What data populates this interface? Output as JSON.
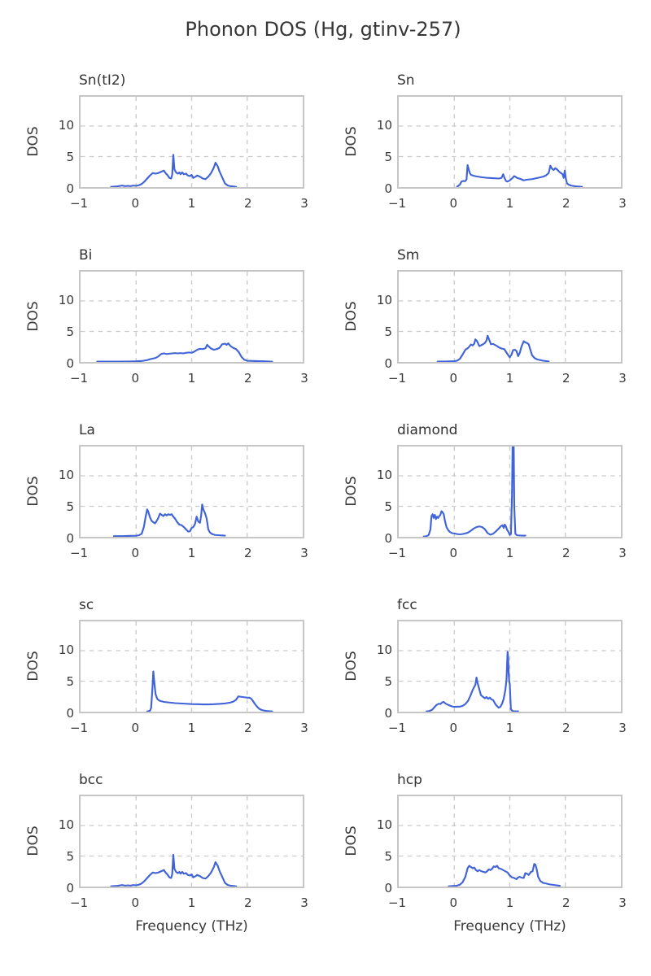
{
  "title": "Phonon DOS (Hg, gtinv-257)",
  "colors": {
    "line": "#4064d8",
    "grid": "#cbcbcb",
    "spine": "#c6c6c6",
    "text": "#3a3a3a"
  },
  "axes": {
    "xlabel": "Frequency (THz)",
    "ylabel": "DOS",
    "xlim": [
      -1,
      3
    ],
    "ylim": [
      0,
      14.8
    ],
    "xticks": [
      -1,
      0,
      1,
      2,
      3
    ],
    "xtick_labels": [
      "−1",
      "0",
      "1",
      "2",
      "3"
    ],
    "yticks": [
      0,
      5,
      10
    ],
    "ytick_labels": [
      "0",
      "5",
      "10"
    ],
    "grid_x": [
      0,
      1,
      2
    ],
    "grid_y": [
      5,
      10
    ],
    "grid_on": true,
    "legend": "none"
  },
  "chart_data": [
    {
      "type": "line",
      "title": "Sn(tI2)",
      "x": [
        -0.45,
        -0.35,
        -0.25,
        -0.2,
        -0.15,
        -0.1,
        -0.05,
        0,
        0.05,
        0.1,
        0.15,
        0.2,
        0.25,
        0.3,
        0.35,
        0.4,
        0.45,
        0.5,
        0.53,
        0.57,
        0.6,
        0.63,
        0.65,
        0.67,
        0.69,
        0.72,
        0.75,
        0.78,
        0.8,
        0.83,
        0.86,
        0.9,
        0.93,
        0.97,
        1.0,
        1.03,
        1.07,
        1.1,
        1.15,
        1.2,
        1.25,
        1.3,
        1.35,
        1.4,
        1.43,
        1.47,
        1.5,
        1.55,
        1.6,
        1.65,
        1.7,
        1.8
      ],
      "y": [
        0.05,
        0.1,
        0.25,
        0.15,
        0.2,
        0.15,
        0.25,
        0.2,
        0.3,
        0.5,
        0.9,
        1.4,
        1.9,
        2.3,
        2.2,
        2.3,
        2.5,
        2.7,
        2.3,
        1.9,
        1.5,
        1.4,
        2.0,
        5.3,
        2.9,
        2.4,
        2.2,
        2.4,
        2.1,
        2.4,
        2.1,
        2.2,
        1.9,
        1.8,
        2.0,
        1.5,
        1.7,
        1.9,
        1.7,
        1.4,
        1.3,
        1.7,
        2.3,
        3.2,
        4.0,
        3.4,
        2.6,
        1.6,
        0.6,
        0.25,
        0.15,
        0.05
      ]
    },
    {
      "type": "line",
      "title": "Sn",
      "x": [
        0.05,
        0.1,
        0.13,
        0.16,
        0.19,
        0.22,
        0.24,
        0.26,
        0.28,
        0.3,
        0.35,
        0.4,
        0.5,
        0.6,
        0.7,
        0.8,
        0.85,
        0.88,
        0.9,
        0.93,
        0.96,
        1.0,
        1.05,
        1.08,
        1.1,
        1.13,
        1.17,
        1.2,
        1.25,
        1.3,
        1.35,
        1.4,
        1.45,
        1.5,
        1.55,
        1.6,
        1.65,
        1.7,
        1.73,
        1.76,
        1.79,
        1.82,
        1.85,
        1.88,
        1.92,
        1.95,
        1.97,
        1.99,
        2.01,
        2.03,
        2.06,
        2.1,
        2.2,
        2.3
      ],
      "y": [
        0.05,
        0.4,
        0.9,
        1.0,
        0.95,
        1.2,
        3.6,
        2.9,
        2.3,
        2.0,
        1.85,
        1.75,
        1.6,
        1.5,
        1.45,
        1.4,
        1.5,
        2.1,
        1.6,
        1.0,
        0.9,
        1.1,
        1.5,
        1.8,
        1.7,
        1.5,
        1.4,
        1.3,
        1.1,
        1.2,
        1.25,
        1.3,
        1.4,
        1.5,
        1.6,
        1.7,
        1.9,
        2.3,
        3.5,
        3.0,
        2.8,
        3.1,
        2.9,
        2.6,
        2.3,
        2.1,
        1.5,
        2.7,
        1.3,
        0.6,
        0.4,
        0.25,
        0.1,
        0.05
      ]
    },
    {
      "type": "line",
      "title": "Bi",
      "x": [
        -0.7,
        -0.5,
        -0.3,
        -0.1,
        0.0,
        0.1,
        0.2,
        0.25,
        0.3,
        0.35,
        0.4,
        0.45,
        0.5,
        0.55,
        0.6,
        0.65,
        0.7,
        0.75,
        0.8,
        0.85,
        0.9,
        0.95,
        1.0,
        1.05,
        1.1,
        1.15,
        1.2,
        1.25,
        1.28,
        1.31,
        1.35,
        1.4,
        1.45,
        1.5,
        1.55,
        1.6,
        1.63,
        1.66,
        1.7,
        1.75,
        1.8,
        1.85,
        1.9,
        1.95,
        2.0,
        2.1,
        2.2,
        2.3,
        2.45
      ],
      "y": [
        0.05,
        0.05,
        0.05,
        0.08,
        0.1,
        0.15,
        0.3,
        0.45,
        0.55,
        0.65,
        0.9,
        1.3,
        1.4,
        1.3,
        1.35,
        1.4,
        1.45,
        1.4,
        1.45,
        1.4,
        1.5,
        1.55,
        1.5,
        1.7,
        2.0,
        2.15,
        2.1,
        2.25,
        2.8,
        2.5,
        2.2,
        2.0,
        2.1,
        2.3,
        2.9,
        3.0,
        2.8,
        3.05,
        2.6,
        2.3,
        2.1,
        1.6,
        0.8,
        0.35,
        0.2,
        0.15,
        0.12,
        0.1,
        0.05
      ]
    },
    {
      "type": "line",
      "title": "Sm",
      "x": [
        -0.3,
        -0.15,
        0.0,
        0.05,
        0.1,
        0.15,
        0.2,
        0.25,
        0.3,
        0.33,
        0.36,
        0.38,
        0.41,
        0.45,
        0.5,
        0.55,
        0.58,
        0.6,
        0.63,
        0.66,
        0.7,
        0.73,
        0.77,
        0.8,
        0.85,
        0.9,
        0.95,
        1.0,
        1.03,
        1.06,
        1.09,
        1.12,
        1.15,
        1.18,
        1.21,
        1.25,
        1.28,
        1.31,
        1.34,
        1.37,
        1.4,
        1.45,
        1.5,
        1.6,
        1.7
      ],
      "y": [
        0.05,
        0.08,
        0.12,
        0.2,
        0.5,
        1.2,
        2.0,
        2.3,
        2.85,
        2.7,
        3.0,
        3.7,
        3.4,
        2.6,
        2.8,
        3.1,
        3.5,
        4.3,
        3.6,
        2.9,
        2.95,
        2.8,
        2.6,
        2.4,
        2.2,
        2.1,
        1.4,
        0.75,
        1.2,
        1.95,
        2.0,
        1.8,
        0.95,
        1.5,
        2.5,
        3.4,
        3.2,
        3.1,
        2.9,
        2.0,
        1.1,
        0.6,
        0.4,
        0.2,
        0.08
      ]
    },
    {
      "type": "line",
      "title": "La",
      "x": [
        -0.4,
        -0.25,
        -0.1,
        0.0,
        0.05,
        0.1,
        0.14,
        0.17,
        0.2,
        0.22,
        0.25,
        0.28,
        0.31,
        0.34,
        0.37,
        0.4,
        0.43,
        0.46,
        0.49,
        0.52,
        0.55,
        0.58,
        0.61,
        0.64,
        0.67,
        0.7,
        0.74,
        0.78,
        0.82,
        0.86,
        0.9,
        0.94,
        0.97,
        1.0,
        1.03,
        1.06,
        1.09,
        1.12,
        1.15,
        1.17,
        1.19,
        1.21,
        1.24,
        1.27,
        1.3,
        1.33,
        1.37,
        1.42,
        1.5,
        1.6
      ],
      "y": [
        0.1,
        0.1,
        0.15,
        0.18,
        0.25,
        0.5,
        1.6,
        3.2,
        4.5,
        4.1,
        3.2,
        2.6,
        2.4,
        2.2,
        2.6,
        3.1,
        3.8,
        3.6,
        3.4,
        3.7,
        3.5,
        3.7,
        3.6,
        3.7,
        3.3,
        3.0,
        2.4,
        2.0,
        1.9,
        1.6,
        1.2,
        0.85,
        0.9,
        1.45,
        1.6,
        2.1,
        3.3,
        2.5,
        2.3,
        3.4,
        5.3,
        4.5,
        3.9,
        3.0,
        1.2,
        0.7,
        0.45,
        0.3,
        0.25,
        0.2
      ]
    },
    {
      "type": "line",
      "title": "diamond",
      "x": [
        -0.55,
        -0.5,
        -0.46,
        -0.43,
        -0.41,
        -0.39,
        -0.37,
        -0.35,
        -0.33,
        -0.31,
        -0.29,
        -0.27,
        -0.25,
        -0.23,
        -0.21,
        -0.19,
        -0.17,
        -0.14,
        -0.11,
        -0.08,
        -0.04,
        0.0,
        0.05,
        0.1,
        0.15,
        0.2,
        0.25,
        0.3,
        0.35,
        0.4,
        0.45,
        0.5,
        0.55,
        0.6,
        0.65,
        0.7,
        0.75,
        0.8,
        0.84,
        0.87,
        0.89,
        0.91,
        0.93,
        0.95,
        0.97,
        1.0,
        1.02,
        1.04,
        1.05,
        1.07,
        1.08,
        1.1,
        1.13,
        1.2,
        1.28
      ],
      "y": [
        0.05,
        0.1,
        0.3,
        1.2,
        3.4,
        3.7,
        3.1,
        3.6,
        2.9,
        3.3,
        3.1,
        3.4,
        3.6,
        4.2,
        4.0,
        3.7,
        2.7,
        1.6,
        1.1,
        0.8,
        0.6,
        0.55,
        0.45,
        0.4,
        0.45,
        0.55,
        0.7,
        1.0,
        1.35,
        1.6,
        1.7,
        1.6,
        1.25,
        0.6,
        0.35,
        0.5,
        0.9,
        1.35,
        1.75,
        1.9,
        1.45,
        2.0,
        1.7,
        1.15,
        0.9,
        0.3,
        0.45,
        7.0,
        14.8,
        14.8,
        5.0,
        0.5,
        0.25,
        0.2,
        0.2
      ]
    },
    {
      "type": "line",
      "title": "sc",
      "x": [
        0.2,
        0.25,
        0.27,
        0.29,
        0.31,
        0.33,
        0.35,
        0.38,
        0.42,
        0.46,
        0.5,
        0.6,
        0.7,
        0.8,
        0.9,
        1.0,
        1.1,
        1.2,
        1.3,
        1.4,
        1.5,
        1.6,
        1.7,
        1.75,
        1.8,
        1.84,
        1.88,
        1.92,
        1.96,
        2.0,
        2.04,
        2.07,
        2.1,
        2.14,
        2.18,
        2.22,
        2.27,
        2.35,
        2.45
      ],
      "y": [
        0.05,
        0.15,
        0.6,
        3.2,
        6.6,
        4.6,
        2.9,
        2.1,
        1.8,
        1.7,
        1.6,
        1.5,
        1.4,
        1.35,
        1.3,
        1.25,
        1.22,
        1.2,
        1.2,
        1.22,
        1.28,
        1.35,
        1.5,
        1.65,
        1.95,
        2.5,
        2.45,
        2.4,
        2.35,
        2.3,
        2.3,
        2.15,
        1.8,
        1.25,
        0.8,
        0.45,
        0.25,
        0.1,
        0.05
      ]
    },
    {
      "type": "line",
      "title": "fcc",
      "x": [
        -0.5,
        -0.45,
        -0.4,
        -0.36,
        -0.32,
        -0.28,
        -0.25,
        -0.22,
        -0.19,
        -0.16,
        -0.12,
        -0.08,
        -0.04,
        0.0,
        0.05,
        0.1,
        0.15,
        0.2,
        0.25,
        0.29,
        0.32,
        0.35,
        0.38,
        0.4,
        0.42,
        0.45,
        0.48,
        0.52,
        0.55,
        0.58,
        0.61,
        0.64,
        0.67,
        0.7,
        0.73,
        0.76,
        0.8,
        0.83,
        0.86,
        0.89,
        0.92,
        0.94,
        0.95,
        0.96,
        0.97,
        0.98,
        0.99,
        1.0,
        1.01,
        1.02,
        1.05,
        1.1,
        1.15
      ],
      "y": [
        0.05,
        0.1,
        0.3,
        0.7,
        1.1,
        1.3,
        1.25,
        1.5,
        1.6,
        1.35,
        1.15,
        1.0,
        0.85,
        0.8,
        0.8,
        0.82,
        0.95,
        1.25,
        1.8,
        2.6,
        3.3,
        3.9,
        4.4,
        5.6,
        4.7,
        3.7,
        2.7,
        2.4,
        2.2,
        2.4,
        2.1,
        2.3,
        2.0,
        1.9,
        1.4,
        1.0,
        0.65,
        0.8,
        1.3,
        2.1,
        3.6,
        5.2,
        7.5,
        9.8,
        8.8,
        6.2,
        4.9,
        4.5,
        2.2,
        0.4,
        0.1,
        0.05,
        0.05
      ]
    },
    {
      "type": "line",
      "title": "bcc",
      "x": [
        -0.45,
        -0.35,
        -0.25,
        -0.2,
        -0.15,
        -0.1,
        -0.05,
        0,
        0.05,
        0.1,
        0.15,
        0.2,
        0.25,
        0.3,
        0.35,
        0.4,
        0.45,
        0.5,
        0.53,
        0.57,
        0.6,
        0.63,
        0.65,
        0.67,
        0.69,
        0.72,
        0.75,
        0.78,
        0.8,
        0.83,
        0.86,
        0.9,
        0.93,
        0.97,
        1.0,
        1.03,
        1.07,
        1.1,
        1.15,
        1.2,
        1.25,
        1.3,
        1.35,
        1.4,
        1.43,
        1.47,
        1.5,
        1.55,
        1.6,
        1.65,
        1.7,
        1.8
      ],
      "y": [
        0.05,
        0.1,
        0.25,
        0.15,
        0.2,
        0.15,
        0.25,
        0.2,
        0.3,
        0.5,
        0.9,
        1.4,
        1.9,
        2.3,
        2.2,
        2.3,
        2.5,
        2.7,
        2.3,
        1.9,
        1.5,
        1.4,
        2.0,
        5.2,
        2.9,
        2.4,
        2.2,
        2.4,
        2.1,
        2.4,
        2.1,
        2.2,
        1.9,
        1.8,
        2.0,
        1.5,
        1.7,
        1.9,
        1.7,
        1.4,
        1.3,
        1.7,
        2.3,
        3.2,
        4.0,
        3.4,
        2.6,
        1.6,
        0.6,
        0.25,
        0.15,
        0.05
      ]
    },
    {
      "type": "line",
      "title": "hcp",
      "x": [
        -0.1,
        0.0,
        0.05,
        0.1,
        0.15,
        0.2,
        0.24,
        0.27,
        0.3,
        0.33,
        0.36,
        0.39,
        0.42,
        0.45,
        0.49,
        0.53,
        0.56,
        0.59,
        0.62,
        0.65,
        0.68,
        0.71,
        0.74,
        0.77,
        0.8,
        0.84,
        0.88,
        0.92,
        0.96,
        1.0,
        1.04,
        1.08,
        1.12,
        1.15,
        1.18,
        1.21,
        1.25,
        1.28,
        1.31,
        1.34,
        1.38,
        1.41,
        1.44,
        1.46,
        1.48,
        1.51,
        1.55,
        1.6,
        1.65,
        1.72,
        1.8,
        1.9
      ],
      "y": [
        0.05,
        0.1,
        0.15,
        0.3,
        0.7,
        1.6,
        3.0,
        3.4,
        3.2,
        3.0,
        3.1,
        2.7,
        2.5,
        2.7,
        2.5,
        2.4,
        2.3,
        2.5,
        2.8,
        2.7,
        2.9,
        3.3,
        3.2,
        3.4,
        3.0,
        2.9,
        2.7,
        2.5,
        2.3,
        1.8,
        1.5,
        1.4,
        1.2,
        1.5,
        1.6,
        1.45,
        1.4,
        2.2,
        2.1,
        1.9,
        2.4,
        2.5,
        3.7,
        3.6,
        3.0,
        1.6,
        0.9,
        0.6,
        0.5,
        0.35,
        0.25,
        0.12
      ]
    }
  ]
}
